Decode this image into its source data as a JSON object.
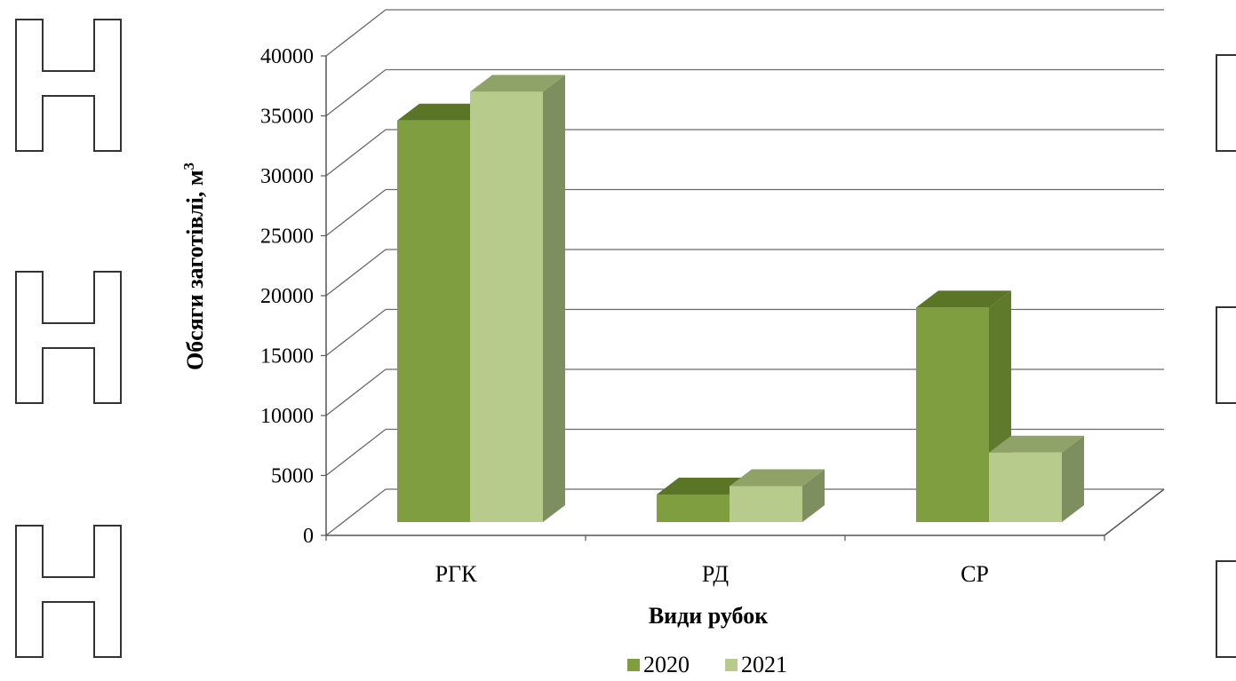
{
  "chart_data": {
    "type": "bar",
    "style": "3d-clustered-column",
    "categories": [
      "РГК",
      "РД",
      "СР"
    ],
    "series": [
      {
        "name": "2020",
        "values": [
          33500,
          2300,
          17900
        ],
        "color": "#7f9e3f",
        "top_color": "#5a7526",
        "side_color": "#5f7a2a"
      },
      {
        "name": "2021",
        "values": [
          35900,
          3000,
          5800
        ],
        "color": "#b6cb8c",
        "top_color": "#8fa368",
        "side_color": "#7d8f5e"
      }
    ],
    "yticks": [
      "0",
      "5000",
      "10000",
      "15000",
      "20000",
      "25000",
      "30000",
      "35000",
      "40000"
    ],
    "ylim": [
      0,
      40000
    ],
    "ylabel_main": "Обсяги заготівлі, м",
    "ylabel_sup": "3",
    "xlabel": "Види рубок",
    "legend_position": "bottom",
    "grid": true
  }
}
